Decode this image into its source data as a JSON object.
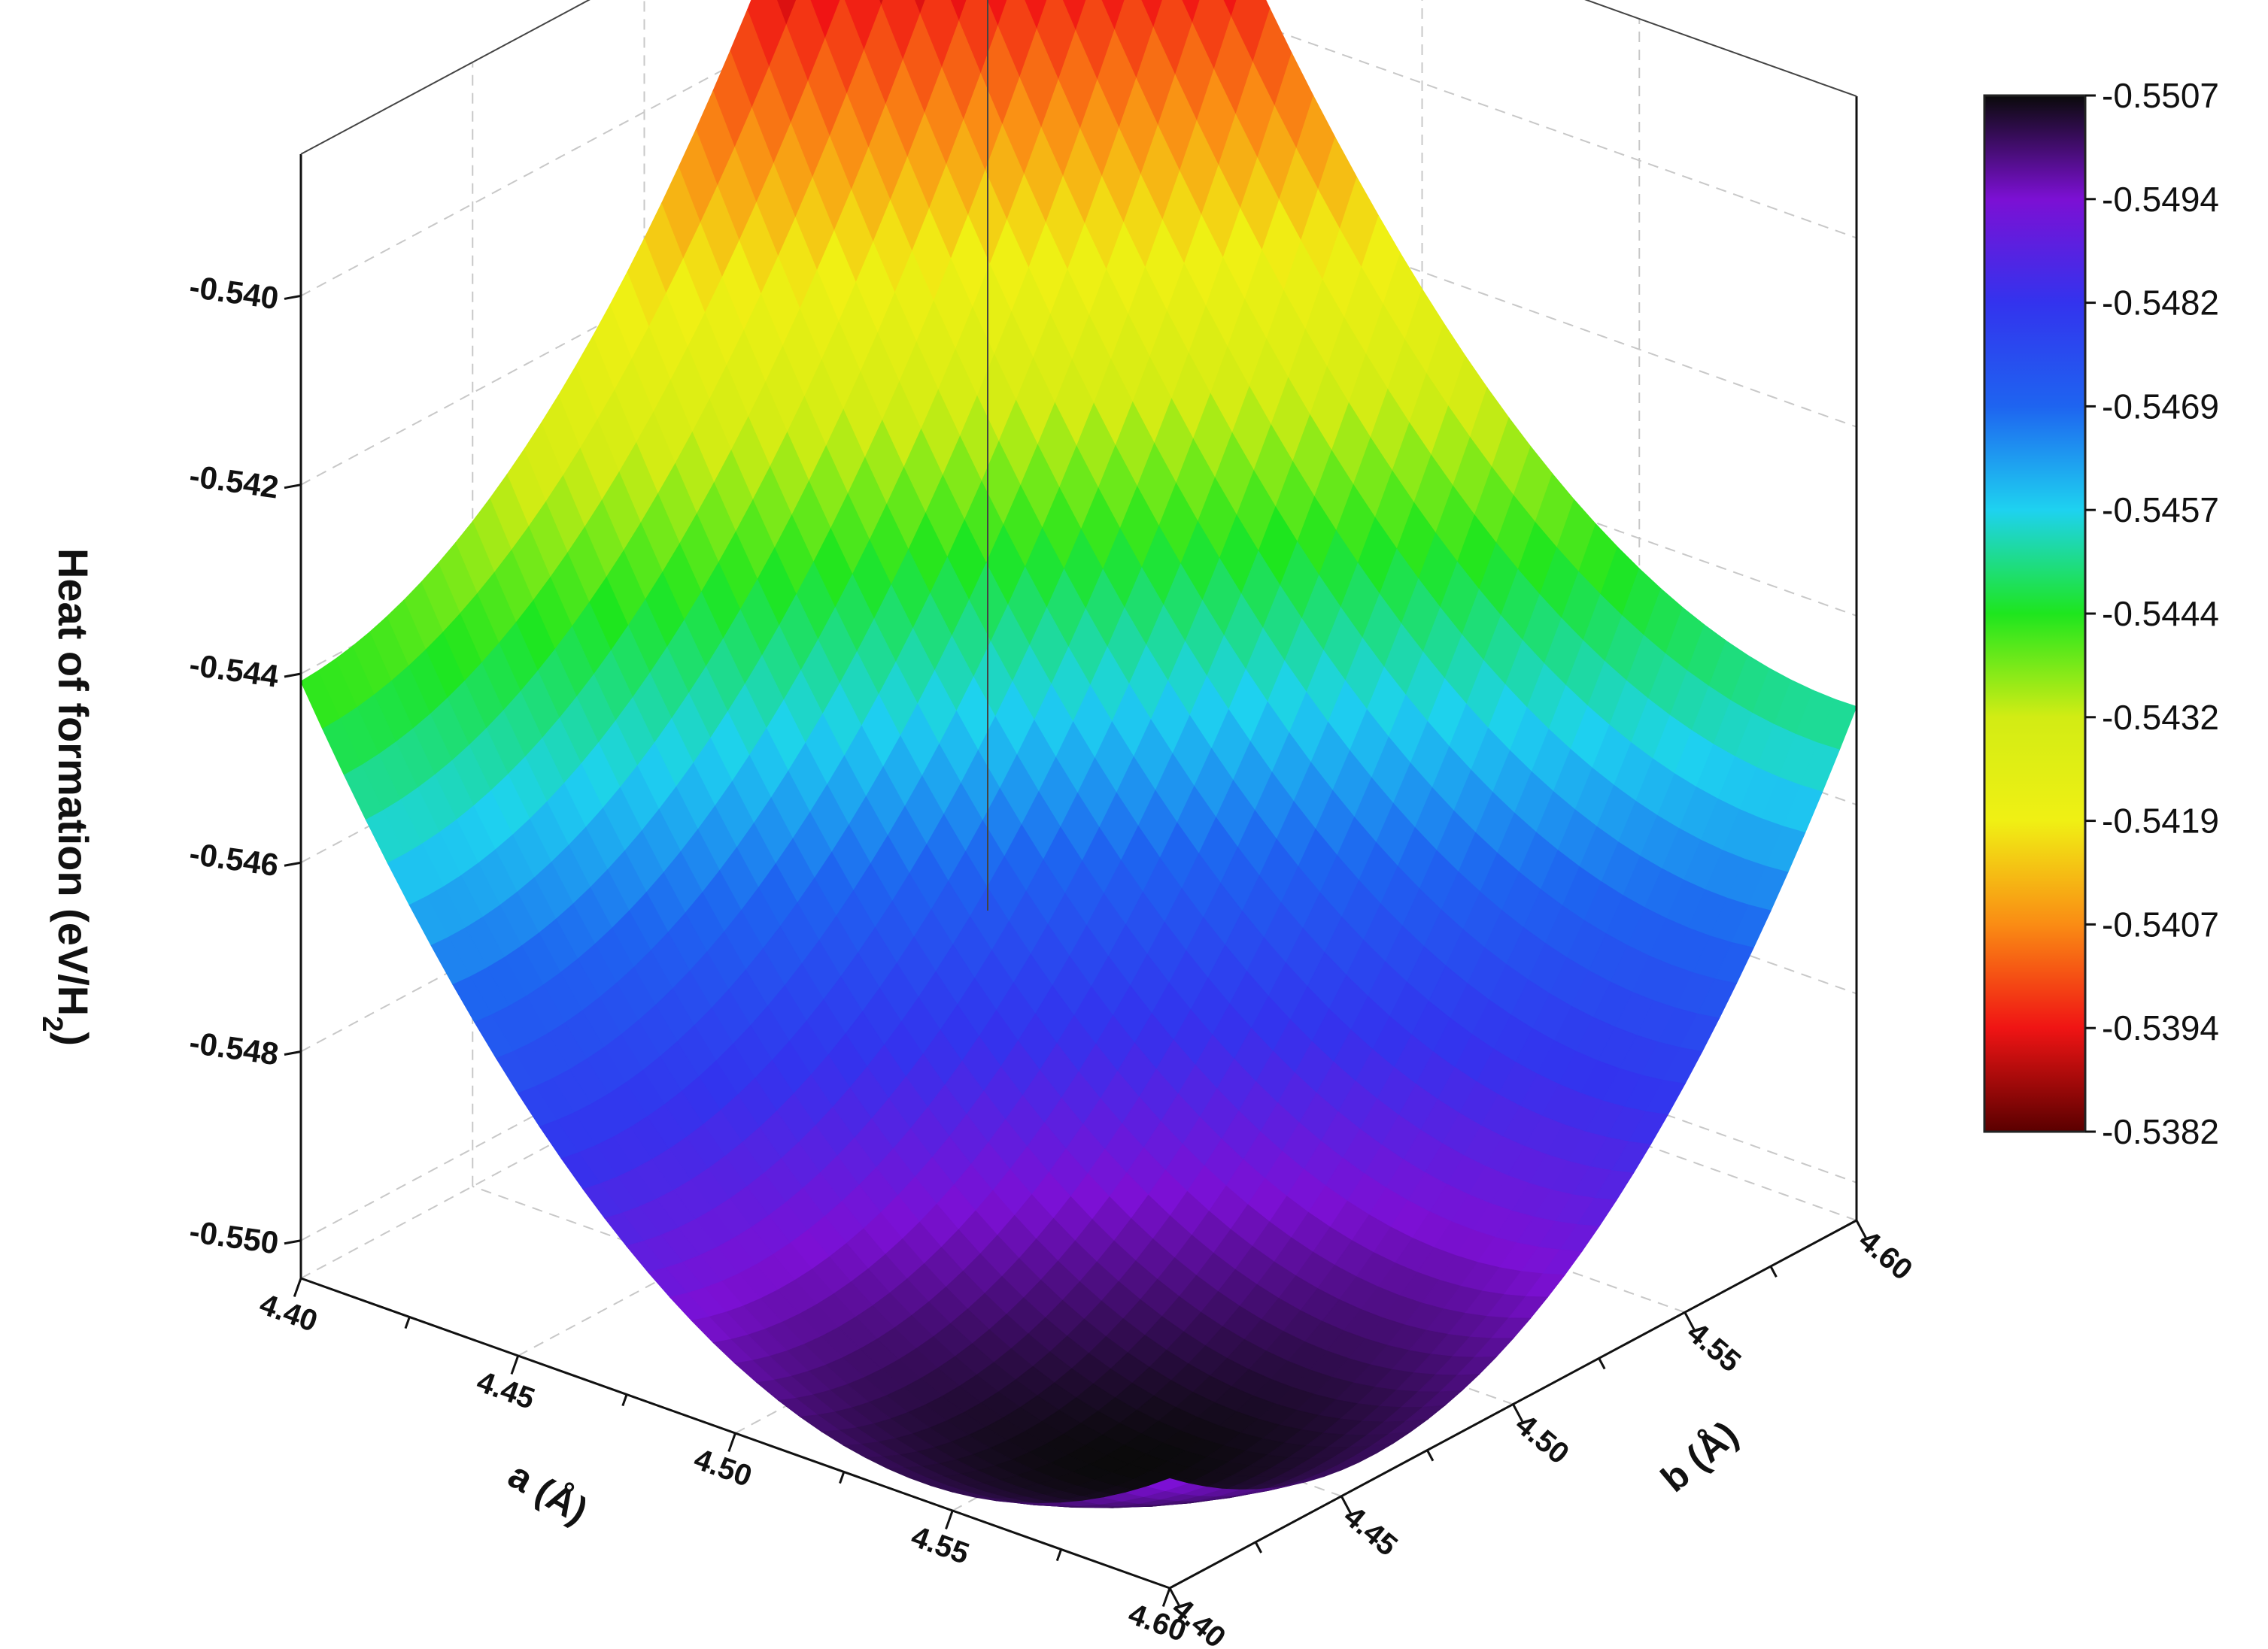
{
  "chart_data": {
    "type": "surface3d",
    "title": "",
    "z_axis": {
      "label": "Heat of formation (eV/H",
      "label_sub": "2",
      "label_tail": ")",
      "range": [
        -0.5504,
        -0.5385
      ],
      "ticks": [
        "-0.540",
        "-0.542",
        "-0.544",
        "-0.546",
        "-0.548",
        "-0.550"
      ],
      "tick_values": [
        -0.54,
        -0.542,
        -0.544,
        -0.546,
        -0.548,
        -0.55
      ]
    },
    "a_axis": {
      "label": "a (Å)",
      "range": [
        4.4,
        4.6
      ],
      "ticks": [
        "4.40",
        "4.45",
        "4.50",
        "4.55",
        "4.60"
      ],
      "tick_values": [
        4.4,
        4.45,
        4.5,
        4.55,
        4.6
      ]
    },
    "b_axis": {
      "label": "b (Å)",
      "range": [
        4.4,
        4.6
      ],
      "ticks": [
        "4.40",
        "4.45",
        "4.50",
        "4.55",
        "4.60"
      ],
      "tick_values": [
        4.4,
        4.45,
        4.5,
        4.55,
        4.6
      ]
    },
    "surface_model": {
      "form": "quadratic",
      "min": -0.5507,
      "a0": 4.555,
      "b0": 4.445,
      "ka": 0.3,
      "kb": 0.26,
      "kab": -0.16
    },
    "colorbar": {
      "labels": [
        "-0.5507",
        "-0.5494",
        "-0.5482",
        "-0.5469",
        "-0.5457",
        "-0.5444",
        "-0.5432",
        "-0.5419",
        "-0.5407",
        "-0.5394",
        "-0.5382"
      ],
      "values": [
        -0.5507,
        -0.5494,
        -0.5482,
        -0.5469,
        -0.5457,
        -0.5444,
        -0.5432,
        -0.5419,
        -0.5407,
        -0.5394,
        -0.5382
      ],
      "colors": [
        "#0a0a0a",
        "#7c10d4",
        "#3333ee",
        "#1e64f0",
        "#1ed2f0",
        "#1ee61e",
        "#d2ec14",
        "#f0f014",
        "#fa8c14",
        "#f01414",
        "#5a0000"
      ]
    },
    "grid": true,
    "legend": "right"
  }
}
